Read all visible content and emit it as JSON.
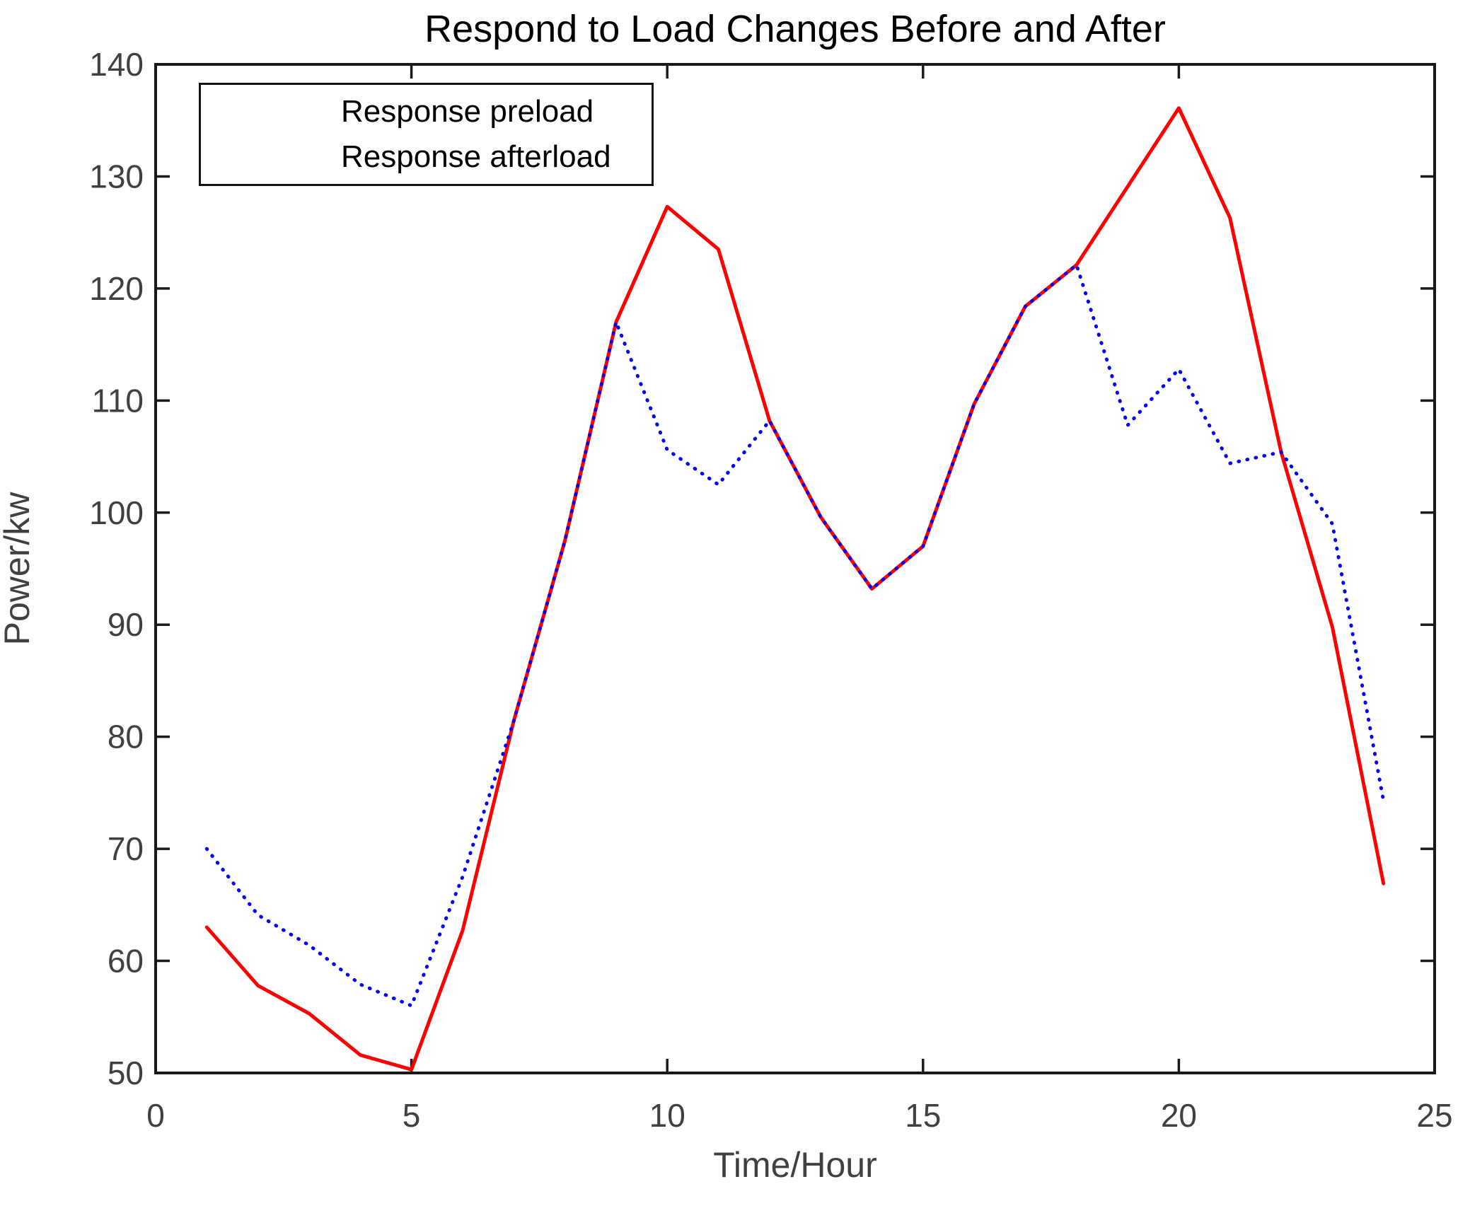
{
  "title": "Respond to Load Changes Before and After",
  "axes": {
    "xlabel": "Time/Hour",
    "ylabel": "Power/kw"
  },
  "legend": {
    "items": [
      {
        "label": "Response preload",
        "color": "#ff0000",
        "style": "solid"
      },
      {
        "label": "Response afterload",
        "color": "#0000ff",
        "style": "dotted"
      }
    ]
  },
  "colors": {
    "preload": "#ff0000",
    "afterload": "#0000ff",
    "axis_box": "#1a1a1a",
    "tick_text": "#404040",
    "title_text": "#000000"
  },
  "chart_data": {
    "type": "line",
    "title": "Respond to Load Changes Before and After",
    "xlabel": "Time/Hour",
    "ylabel": "Power/kw",
    "xlim": [
      0,
      25
    ],
    "ylim": [
      50,
      140
    ],
    "xticks": [
      0,
      5,
      10,
      15,
      20,
      25
    ],
    "yticks": [
      50,
      60,
      70,
      80,
      90,
      100,
      110,
      120,
      130,
      140
    ],
    "grid": false,
    "legend_position": "top-left",
    "x": [
      1,
      2,
      3,
      4,
      5,
      6,
      7,
      8,
      9,
      10,
      11,
      12,
      13,
      14,
      15,
      16,
      17,
      18,
      19,
      20,
      21,
      22,
      23,
      24
    ],
    "series": [
      {
        "name": "Response preload",
        "color": "#ff0000",
        "line_style": "solid",
        "values": [
          63.0,
          57.8,
          55.3,
          51.6,
          50.3,
          62.7,
          81.4,
          97.5,
          117.0,
          127.3,
          123.5,
          108.2,
          99.6,
          93.2,
          97.0,
          109.7,
          118.4,
          122.1,
          129.1,
          136.1,
          126.3,
          105.4,
          89.8,
          66.9
        ]
      },
      {
        "name": "Response afterload",
        "color": "#0000ff",
        "line_style": "dotted",
        "values": [
          70.0,
          64.1,
          61.4,
          57.9,
          56.0,
          67.5,
          81.4,
          97.5,
          117.0,
          105.6,
          102.5,
          108.2,
          99.6,
          93.2,
          97.0,
          109.7,
          118.4,
          122.1,
          107.8,
          112.8,
          104.4,
          105.4,
          99.0,
          74.3
        ]
      }
    ]
  }
}
